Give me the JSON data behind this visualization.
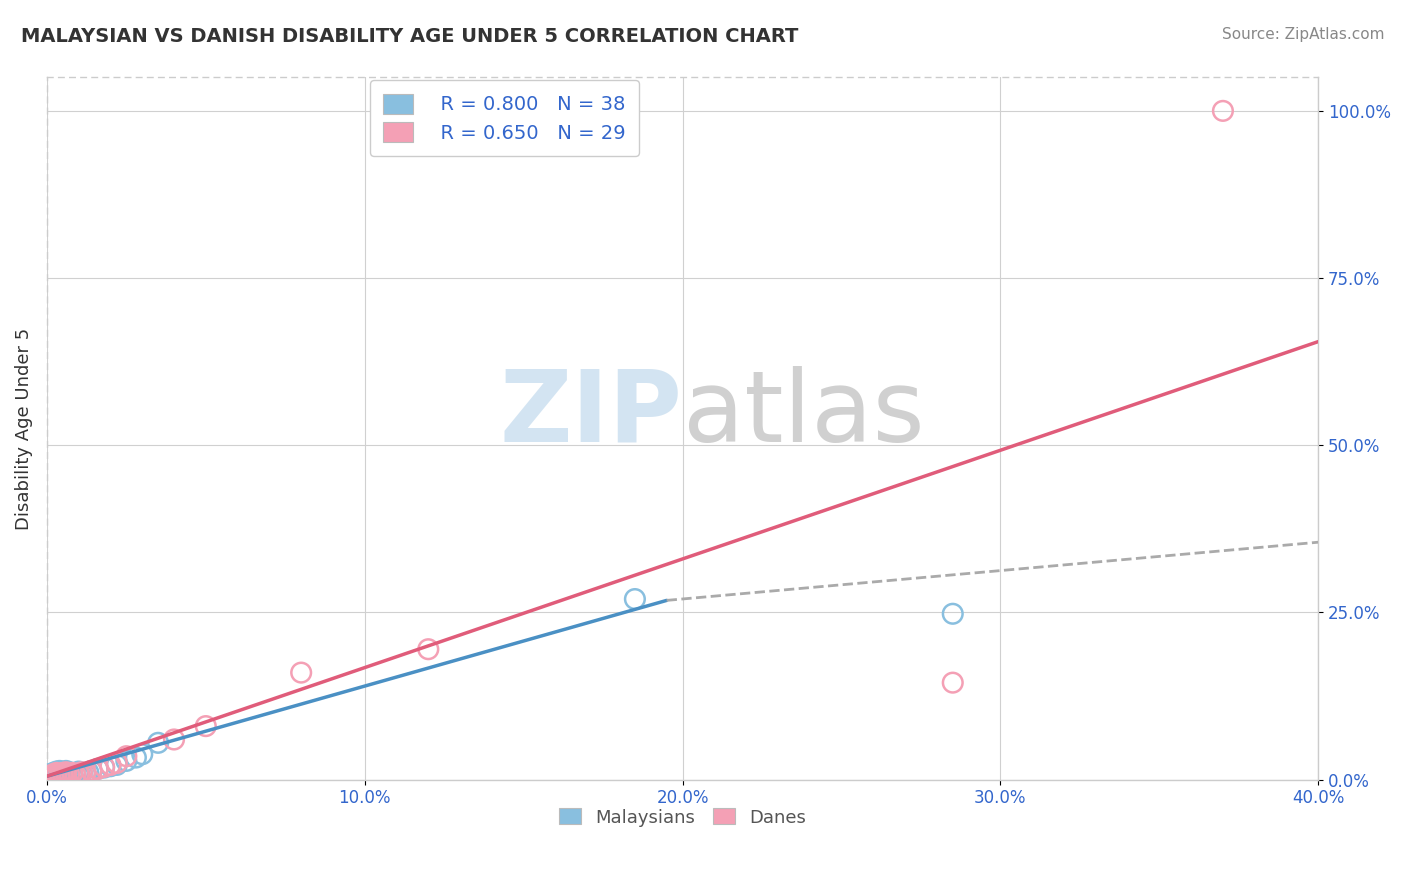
{
  "title": "MALAYSIAN VS DANISH DISABILITY AGE UNDER 5 CORRELATION CHART",
  "source": "Source: ZipAtlas.com",
  "xlabel_label": "Malaysians",
  "xlabel_label2": "Danes",
  "ylabel": "Disability Age Under 5",
  "xmin": 0.0,
  "xmax": 0.4,
  "ymin": 0.0,
  "ymax": 1.05,
  "yticks": [
    0.0,
    0.25,
    0.5,
    0.75,
    1.0
  ],
  "ytick_labels": [
    "0.0%",
    "25.0%",
    "50.0%",
    "75.0%",
    "100.0%"
  ],
  "xticks": [
    0.0,
    0.1,
    0.2,
    0.3,
    0.4
  ],
  "xtick_labels": [
    "0.0%",
    "10.0%",
    "20.0%",
    "30.0%",
    "40.0%"
  ],
  "blue_color": "#89bfdf",
  "pink_color": "#f4a0b5",
  "blue_line_color": "#4a90c4",
  "pink_line_color": "#e05c7a",
  "dashed_line_color": "#aaaaaa",
  "r_blue": "R = 0.800",
  "n_blue": "N = 38",
  "r_pink": "R = 0.650",
  "n_pink": "N = 29",
  "legend_r_n_color": "#3366cc",
  "blue_line_x": [
    0.0,
    0.195
  ],
  "blue_line_y": [
    0.005,
    0.268
  ],
  "dash_line_x": [
    0.195,
    0.4
  ],
  "dash_line_y": [
    0.268,
    0.355
  ],
  "pink_line_x": [
    0.0,
    0.4
  ],
  "pink_line_y": [
    0.005,
    0.655
  ],
  "malaysian_x": [
    0.001,
    0.001,
    0.002,
    0.002,
    0.002,
    0.003,
    0.003,
    0.003,
    0.004,
    0.004,
    0.004,
    0.005,
    0.005,
    0.005,
    0.006,
    0.006,
    0.006,
    0.007,
    0.007,
    0.008,
    0.008,
    0.009,
    0.01,
    0.01,
    0.011,
    0.012,
    0.013,
    0.014,
    0.016,
    0.018,
    0.02,
    0.022,
    0.025,
    0.028,
    0.03,
    0.035,
    0.185,
    0.285
  ],
  "malaysian_y": [
    0.005,
    0.008,
    0.004,
    0.007,
    0.01,
    0.005,
    0.008,
    0.012,
    0.006,
    0.009,
    0.013,
    0.004,
    0.007,
    0.011,
    0.006,
    0.009,
    0.013,
    0.007,
    0.011,
    0.006,
    0.01,
    0.008,
    0.006,
    0.012,
    0.01,
    0.009,
    0.011,
    0.013,
    0.016,
    0.018,
    0.02,
    0.022,
    0.028,
    0.033,
    0.038,
    0.055,
    0.27,
    0.248
  ],
  "danish_x": [
    0.001,
    0.002,
    0.002,
    0.003,
    0.003,
    0.004,
    0.004,
    0.005,
    0.005,
    0.006,
    0.006,
    0.007,
    0.008,
    0.009,
    0.01,
    0.011,
    0.012,
    0.014,
    0.016,
    0.018,
    0.02,
    0.022,
    0.025,
    0.04,
    0.05,
    0.08,
    0.12,
    0.285,
    0.37
  ],
  "danish_y": [
    0.005,
    0.004,
    0.008,
    0.006,
    0.01,
    0.005,
    0.009,
    0.006,
    0.01,
    0.007,
    0.011,
    0.008,
    0.01,
    0.007,
    0.009,
    0.011,
    0.01,
    0.013,
    0.016,
    0.019,
    0.022,
    0.025,
    0.035,
    0.06,
    0.08,
    0.16,
    0.195,
    0.145,
    1.0
  ]
}
